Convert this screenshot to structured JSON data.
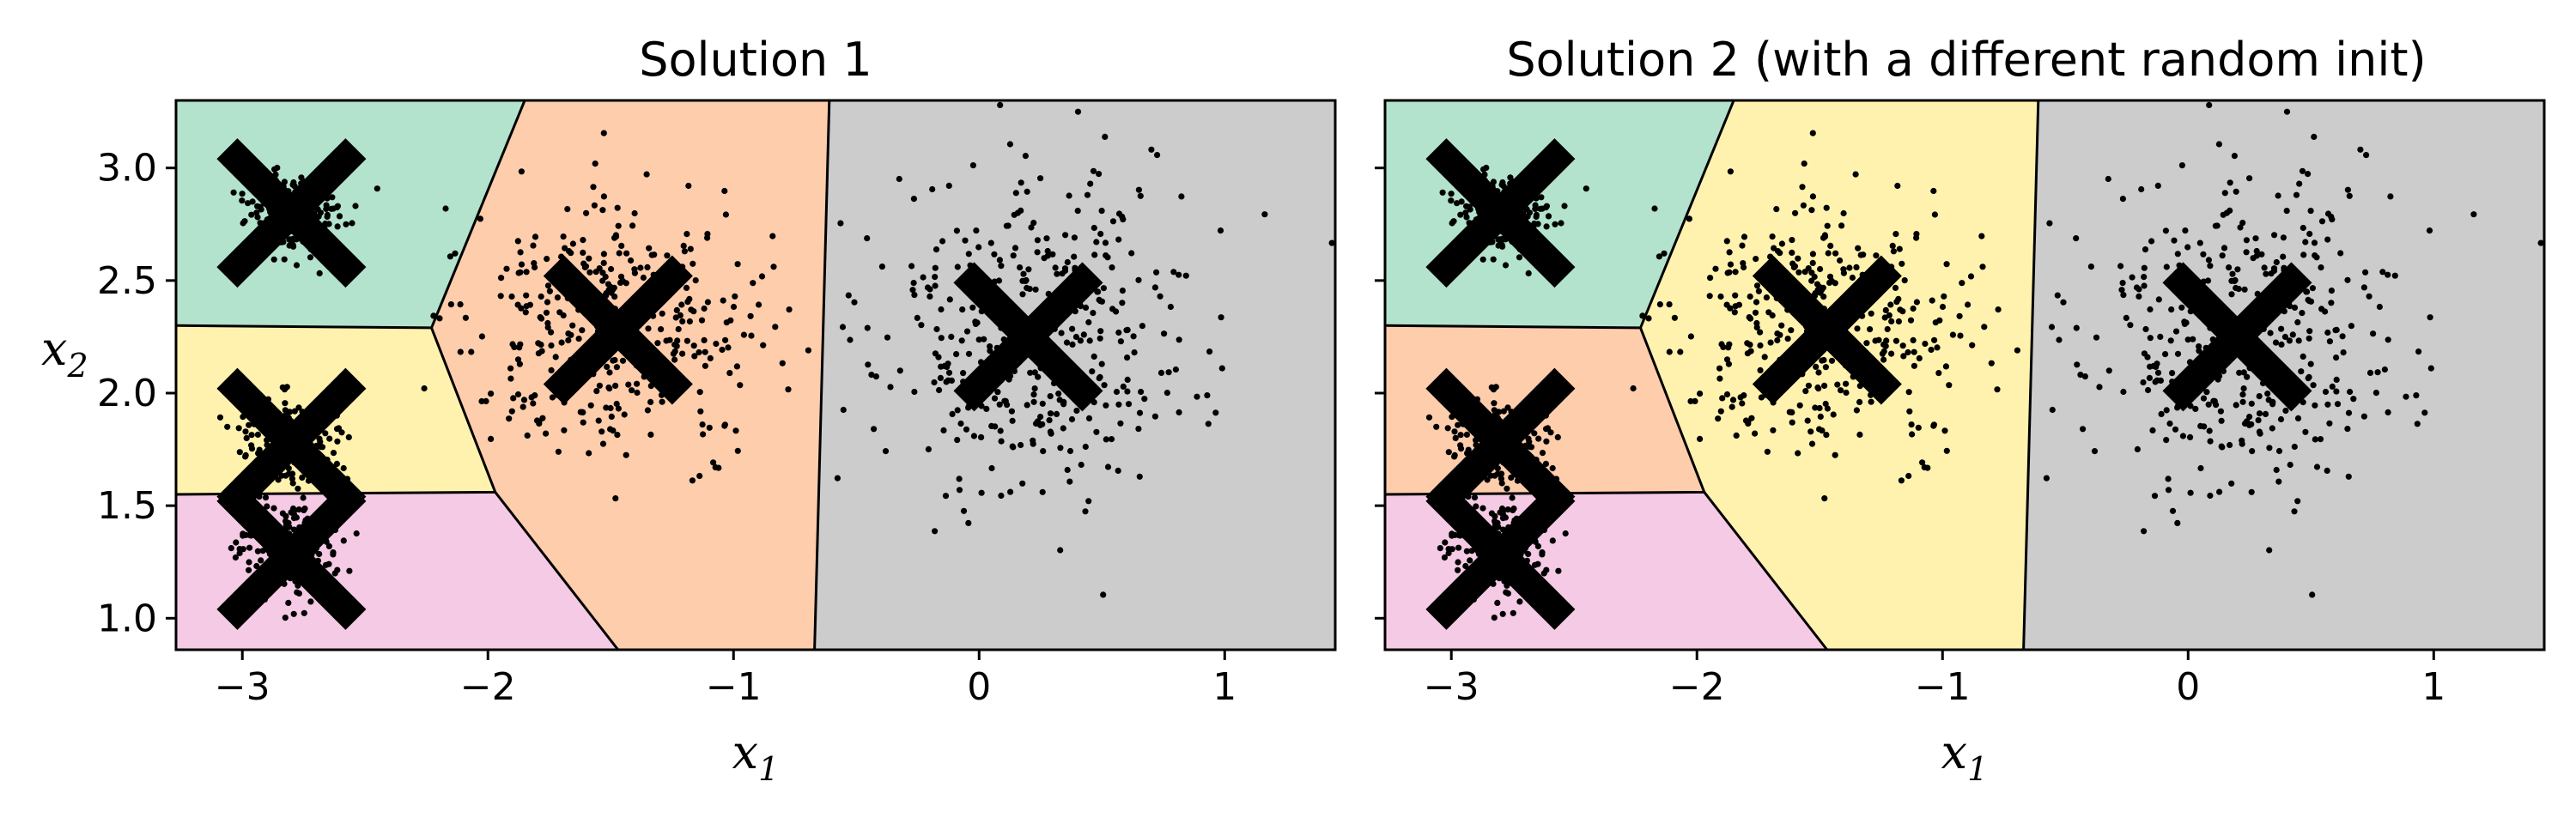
{
  "chart_data": [
    {
      "type": "scatter",
      "title": "Solution 1",
      "xlabel": "x",
      "xlabel_sub": "1",
      "ylabel": "x",
      "ylabel_sub": "2",
      "xlim": [
        -3.27,
        1.45
      ],
      "ylim": [
        0.86,
        3.3
      ],
      "xticks": [
        -3,
        -2,
        -1,
        0,
        1
      ],
      "xtick_labels": [
        "−3",
        "−2",
        "−1",
        "0",
        "1"
      ],
      "yticks": [
        1.0,
        1.5,
        2.0,
        2.5,
        3.0
      ],
      "ytick_labels": [
        "1.0",
        "1.5",
        "2.0",
        "2.5",
        "3.0"
      ],
      "ytick_labels_visible": true,
      "grid": false,
      "clusters": [
        {
          "centroid": [
            -2.8,
            2.8
          ],
          "spread": [
            0.1,
            0.1
          ],
          "count": 200
        },
        {
          "centroid": [
            -1.47,
            2.28
          ],
          "spread": [
            0.3,
            0.3
          ],
          "count": 400
        },
        {
          "centroid": [
            0.2,
            2.25
          ],
          "spread": [
            0.33,
            0.35
          ],
          "count": 400
        },
        {
          "centroid": [
            -2.8,
            1.8
          ],
          "spread": [
            0.1,
            0.1
          ],
          "count": 200
        },
        {
          "centroid": [
            -2.8,
            1.3
          ],
          "spread": [
            0.1,
            0.1
          ],
          "count": 200
        }
      ],
      "centroids": [
        [
          -2.8,
          2.8
        ],
        [
          -1.47,
          2.28
        ],
        [
          0.2,
          2.25
        ],
        [
          -2.8,
          1.78
        ],
        [
          -2.8,
          1.28
        ]
      ],
      "regions": [
        {
          "color": "#b3e2cd",
          "polygon": [
            [
              -3.27,
              3.3
            ],
            [
              -1.85,
              3.3
            ],
            [
              -2.23,
              2.29
            ],
            [
              -3.27,
              2.3
            ]
          ]
        },
        {
          "color": "#fdcdac",
          "polygon": [
            [
              -1.85,
              3.3
            ],
            [
              -0.61,
              3.3
            ],
            [
              -0.67,
              0.86
            ],
            [
              -1.47,
              0.86
            ],
            [
              -1.97,
              1.56
            ],
            [
              -2.23,
              2.29
            ]
          ]
        },
        {
          "color": "#cccccc",
          "polygon": [
            [
              -0.61,
              3.3
            ],
            [
              1.45,
              3.3
            ],
            [
              1.45,
              0.86
            ],
            [
              -0.67,
              0.86
            ]
          ]
        },
        {
          "color": "#fff2ae",
          "polygon": [
            [
              -3.27,
              2.3
            ],
            [
              -2.23,
              2.29
            ],
            [
              -1.97,
              1.56
            ],
            [
              -3.27,
              1.55
            ]
          ]
        },
        {
          "color": "#f4cae4",
          "polygon": [
            [
              -3.27,
              1.55
            ],
            [
              -1.97,
              1.56
            ],
            [
              -1.47,
              0.86
            ],
            [
              -3.27,
              0.86
            ]
          ]
        }
      ],
      "boundaries": [
        [
          [
            -3.27,
            2.3
          ],
          [
            -2.23,
            2.29
          ],
          [
            -1.97,
            1.56
          ],
          [
            -3.27,
            1.55
          ]
        ],
        [
          [
            -1.85,
            3.3
          ],
          [
            -2.23,
            2.29
          ]
        ],
        [
          [
            -1.97,
            1.56
          ],
          [
            -1.47,
            0.86
          ]
        ],
        [
          [
            -0.61,
            3.3
          ],
          [
            -0.67,
            0.86
          ]
        ]
      ]
    },
    {
      "type": "scatter",
      "title": "Solution 2 (with a different random init)",
      "xlabel": "x",
      "xlabel_sub": "1",
      "ylabel": "",
      "ylabel_sub": "",
      "xlim": [
        -3.27,
        1.45
      ],
      "ylim": [
        0.86,
        3.3
      ],
      "xticks": [
        -3,
        -2,
        -1,
        0,
        1
      ],
      "xtick_labels": [
        "−3",
        "−2",
        "−1",
        "0",
        "1"
      ],
      "yticks": [
        1.0,
        1.5,
        2.0,
        2.5,
        3.0
      ],
      "ytick_labels": [],
      "ytick_labels_visible": false,
      "grid": false,
      "clusters": [
        {
          "centroid": [
            -2.8,
            2.8
          ],
          "spread": [
            0.1,
            0.1
          ],
          "count": 200
        },
        {
          "centroid": [
            -1.47,
            2.28
          ],
          "spread": [
            0.3,
            0.3
          ],
          "count": 400
        },
        {
          "centroid": [
            0.2,
            2.25
          ],
          "spread": [
            0.33,
            0.35
          ],
          "count": 400
        },
        {
          "centroid": [
            -2.8,
            1.8
          ],
          "spread": [
            0.1,
            0.1
          ],
          "count": 200
        },
        {
          "centroid": [
            -2.8,
            1.3
          ],
          "spread": [
            0.1,
            0.1
          ],
          "count": 200
        }
      ],
      "centroids": [
        [
          -2.8,
          2.8
        ],
        [
          -1.47,
          2.28
        ],
        [
          0.2,
          2.25
        ],
        [
          -2.8,
          1.78
        ],
        [
          -2.8,
          1.28
        ]
      ],
      "regions": [
        {
          "color": "#b3e2cd",
          "polygon": [
            [
              -3.27,
              3.3
            ],
            [
              -1.85,
              3.3
            ],
            [
              -2.23,
              2.29
            ],
            [
              -3.27,
              2.3
            ]
          ]
        },
        {
          "color": "#fff2ae",
          "polygon": [
            [
              -1.85,
              3.3
            ],
            [
              -0.61,
              3.3
            ],
            [
              -0.67,
              0.86
            ],
            [
              -1.47,
              0.86
            ],
            [
              -1.97,
              1.56
            ],
            [
              -2.23,
              2.29
            ]
          ]
        },
        {
          "color": "#cccccc",
          "polygon": [
            [
              -0.61,
              3.3
            ],
            [
              1.45,
              3.3
            ],
            [
              1.45,
              0.86
            ],
            [
              -0.67,
              0.86
            ]
          ]
        },
        {
          "color": "#fdcdac",
          "polygon": [
            [
              -3.27,
              2.3
            ],
            [
              -2.23,
              2.29
            ],
            [
              -1.97,
              1.56
            ],
            [
              -3.27,
              1.55
            ]
          ]
        },
        {
          "color": "#f4cae4",
          "polygon": [
            [
              -3.27,
              1.55
            ],
            [
              -1.97,
              1.56
            ],
            [
              -1.47,
              0.86
            ],
            [
              -3.27,
              0.86
            ]
          ]
        }
      ],
      "boundaries": [
        [
          [
            -3.27,
            2.3
          ],
          [
            -2.23,
            2.29
          ],
          [
            -1.97,
            1.56
          ],
          [
            -3.27,
            1.55
          ]
        ],
        [
          [
            -1.85,
            3.3
          ],
          [
            -2.23,
            2.29
          ]
        ],
        [
          [
            -1.97,
            1.56
          ],
          [
            -1.47,
            0.86
          ]
        ],
        [
          [
            -0.61,
            3.3
          ],
          [
            -0.67,
            0.86
          ]
        ]
      ]
    }
  ]
}
